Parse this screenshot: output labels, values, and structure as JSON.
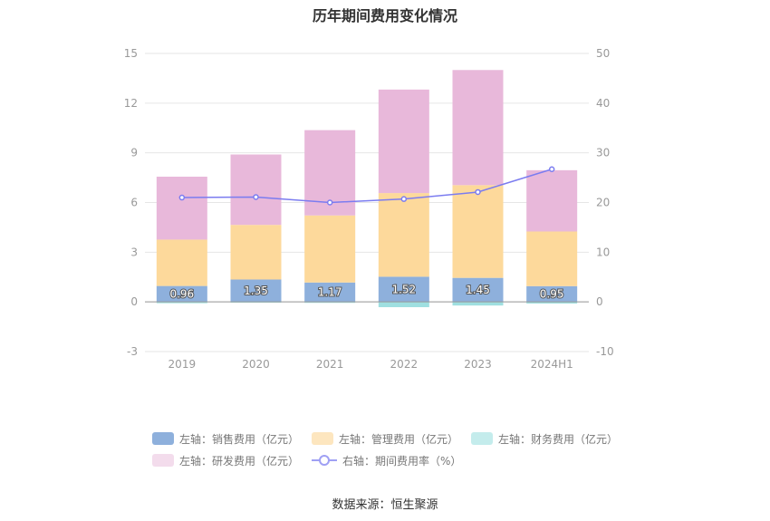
{
  "chart_data": {
    "type": "bar",
    "title": "历年期间费用变化情况",
    "categories": [
      "2019",
      "2020",
      "2021",
      "2022",
      "2023",
      "2024H1"
    ],
    "left_axis": {
      "ylim": [
        -3,
        15
      ],
      "ticks": [
        "15",
        "12",
        "9",
        "6",
        "3",
        "0",
        "-3"
      ],
      "tick_values": [
        15,
        12,
        9,
        6,
        3,
        0,
        -3
      ]
    },
    "right_axis": {
      "ylim": [
        -10,
        50
      ],
      "ticks": [
        "50",
        "40",
        "30",
        "20",
        "10",
        "0",
        "-10"
      ],
      "tick_values": [
        50,
        40,
        30,
        20,
        10,
        0,
        -10
      ]
    },
    "series": [
      {
        "name": "左轴：销售费用（亿元）",
        "type": "bar",
        "color": "#8eb0dc",
        "values": [
          0.96,
          1.35,
          1.17,
          1.52,
          1.45,
          0.95
        ],
        "labels": [
          "0.96",
          "1.35",
          "1.17",
          "1.52",
          "1.45",
          "0.95"
        ]
      },
      {
        "name": "左轴：管理费用（亿元）",
        "type": "bar",
        "color": "#fdd99b",
        "values": [
          2.8,
          3.3,
          4.05,
          5.05,
          5.6,
          3.3
        ]
      },
      {
        "name": "左轴：财务费用（亿元）",
        "type": "bar",
        "color": "#9fdfe0",
        "values": [
          -0.08,
          -0.05,
          -0.06,
          -0.32,
          -0.22,
          -0.1
        ]
      },
      {
        "name": "左轴：研发费用（亿元）",
        "type": "bar",
        "color": "#e8b8da",
        "values": [
          3.8,
          4.25,
          5.15,
          6.25,
          6.95,
          3.7
        ]
      },
      {
        "name": "右轴：期间费用率（%）",
        "type": "line",
        "color": "#7b7cf0",
        "values": [
          21.0,
          21.1,
          20.0,
          20.7,
          22.1,
          26.7
        ]
      }
    ],
    "legend_position": "bottom"
  },
  "source_text": "数据来源：恒生聚源"
}
